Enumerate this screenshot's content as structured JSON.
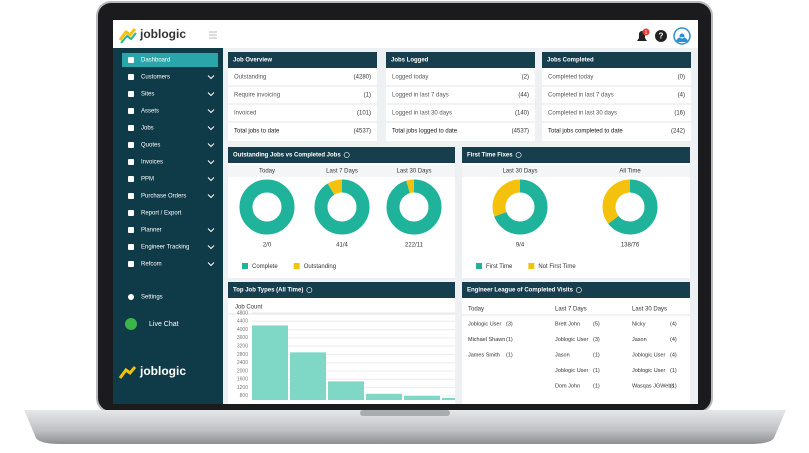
{
  "header": {
    "brand": "joblogic",
    "notifications": "1"
  },
  "sidebar": {
    "items": [
      "Dashboard",
      "Customers",
      "Sites",
      "Assets",
      "Jobs",
      "Quotes",
      "Invoices",
      "PPM",
      "Purchase Orders",
      "Report / Export",
      "Planner",
      "Engineer Tracking",
      "Refcom"
    ],
    "settings": "Settings",
    "live_chat": "Live Chat",
    "brand": "joblogic"
  },
  "summary_panels": [
    {
      "title": "Job Overview",
      "rows": [
        [
          "Outstanding",
          "(4280)"
        ],
        [
          "Require invoicing",
          "(1)"
        ],
        [
          "Invoiced",
          "(101)"
        ],
        [
          "Total jobs to date",
          "(4537)"
        ]
      ]
    },
    {
      "title": "Jobs Logged",
      "rows": [
        [
          "Logged today",
          "(2)"
        ],
        [
          "Logged in last 7 days",
          "(44)"
        ],
        [
          "Logged in last 30 days",
          "(140)"
        ],
        [
          "Total jobs logged to date",
          "(4537)"
        ]
      ]
    },
    {
      "title": "Jobs Completed",
      "rows": [
        [
          "Completed today",
          "(0)"
        ],
        [
          "Completed in last 7 days",
          "(4)"
        ],
        [
          "Completed in last 30 days",
          "(16)"
        ],
        [
          "Total jobs completed to date",
          "(242)"
        ]
      ]
    }
  ],
  "completion_panel": {
    "title": "Outstanding Jobs vs Completed Jobs",
    "legend": [
      "Complete",
      "Outstanding"
    ],
    "colors": [
      "#20b39b",
      "#f4c20d"
    ],
    "donuts": [
      {
        "period": "Today",
        "label": "2/0",
        "values": [
          2,
          0
        ]
      },
      {
        "period": "Last 7 Days",
        "label": "41/4",
        "values": [
          41,
          4
        ]
      },
      {
        "period": "Last 30 Days",
        "label": "222/11",
        "values": [
          222,
          11
        ]
      }
    ]
  },
  "first_time_panel": {
    "title": "First Time Fixes",
    "legend": [
      "First Time",
      "Not First Time"
    ],
    "colors": [
      "#20b39b",
      "#f4c20d"
    ],
    "donuts": [
      {
        "period": "Last 30 Days",
        "label": "9/4",
        "values": [
          9,
          4
        ]
      },
      {
        "period": "All Time",
        "label": "138/76",
        "values": [
          138,
          76
        ]
      }
    ]
  },
  "job_types_chart": {
    "type": "bar",
    "title": "Top Job Types (All Time)",
    "y_label": "Job Count",
    "color": "#7fd8c6",
    "categories": [
      null,
      null,
      null,
      null,
      null,
      null
    ],
    "values": [
      4200,
      2900,
      1500,
      900,
      800,
      700
    ],
    "ylim": [
      600,
      4800
    ],
    "yticks": [
      800,
      1200,
      1600,
      2000,
      2400,
      2800,
      3200,
      3600,
      4000,
      4400,
      4800
    ],
    "grid": true
  },
  "league_panel": {
    "title": "Engineer League of Completed Visits",
    "columns": [
      "Today",
      "Last 7 Days",
      "Last 30 Days"
    ],
    "rows": [
      [
        {
          "name": "Joblogic User",
          "count": "(3)"
        },
        {
          "name": "Brett John",
          "count": "(5)"
        },
        {
          "name": "Nicky",
          "count": "(4)"
        }
      ],
      [
        {
          "name": "Michael Shawn",
          "count": "(1)"
        },
        {
          "name": "Joblogic User",
          "count": "(3)"
        },
        {
          "name": "Jason",
          "count": "(4)"
        }
      ],
      [
        {
          "name": "James Smith",
          "count": "(1)"
        },
        {
          "name": "Jason",
          "count": "(1)"
        },
        {
          "name": "Joblogic User",
          "count": "(4)"
        }
      ],
      [
        null,
        {
          "name": "Joblogic User",
          "count": "(1)"
        },
        {
          "name": "Joblogic User",
          "count": "(1)"
        }
      ],
      [
        null,
        {
          "name": "Dom John",
          "count": "(1)"
        },
        {
          "name": "Wasqas JGWebs",
          "count": "(1)"
        }
      ]
    ]
  }
}
